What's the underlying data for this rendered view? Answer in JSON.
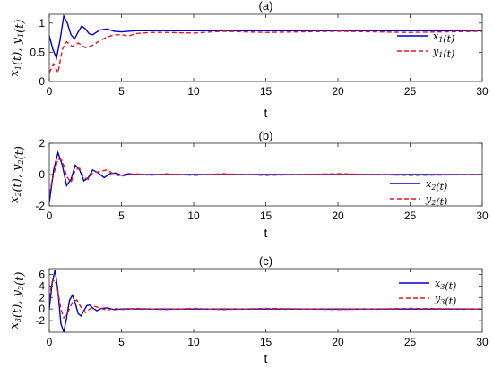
{
  "colors": {
    "x_series": "#0000cc",
    "y_series": "#e8141c",
    "axes": "#262626"
  },
  "chart_data": [
    {
      "type": "line",
      "title": "(a)",
      "xlabel": "t",
      "ylabel": "x1(t), y1(t)",
      "xlim": [
        0,
        30
      ],
      "ylim": [
        0,
        1.15
      ],
      "xticks": [
        0,
        5,
        10,
        15,
        20,
        25,
        30
      ],
      "yticks": [
        0,
        0.5,
        1
      ],
      "ytick_labels": [
        "0",
        "0.5",
        "1"
      ],
      "legend": "right",
      "series": [
        {
          "name": "x1(t)",
          "style": "solid",
          "color": "#0000cc",
          "x": [
            0,
            0.25,
            0.5,
            0.75,
            1.0,
            1.25,
            1.5,
            1.75,
            2.0,
            2.25,
            2.5,
            2.75,
            3.0,
            3.5,
            4.0,
            4.5,
            5.0,
            6.0,
            8.0,
            10,
            15,
            20,
            25,
            30
          ],
          "y": [
            0.78,
            0.55,
            0.4,
            0.72,
            1.12,
            1.0,
            0.8,
            0.73,
            0.85,
            0.95,
            0.9,
            0.82,
            0.8,
            0.88,
            0.9,
            0.86,
            0.85,
            0.87,
            0.87,
            0.87,
            0.87,
            0.87,
            0.87,
            0.87
          ]
        },
        {
          "name": "y1(t)",
          "style": "dashed",
          "color": "#e8141c",
          "x": [
            0,
            0.3,
            0.6,
            0.9,
            1.2,
            1.6,
            2.0,
            2.5,
            3.0,
            3.5,
            4.0,
            4.5,
            5.0,
            5.5,
            6.0,
            7.0,
            8.0,
            10,
            12,
            15,
            20,
            25,
            30
          ],
          "y": [
            0.15,
            0.3,
            0.15,
            0.55,
            0.68,
            0.6,
            0.66,
            0.58,
            0.62,
            0.7,
            0.76,
            0.8,
            0.8,
            0.78,
            0.82,
            0.84,
            0.84,
            0.83,
            0.86,
            0.84,
            0.86,
            0.84,
            0.86
          ]
        }
      ]
    },
    {
      "type": "line",
      "title": "(b)",
      "xlabel": "t",
      "ylabel": "x2(t), y2(t)",
      "xlim": [
        0,
        30
      ],
      "ylim": [
        -2,
        2
      ],
      "xticks": [
        0,
        5,
        10,
        15,
        20,
        25,
        30
      ],
      "yticks": [
        -2,
        0,
        2
      ],
      "ytick_labels": [
        "-2",
        "0",
        "2"
      ],
      "legend": "right",
      "series": [
        {
          "name": "x2(t)",
          "style": "solid",
          "color": "#0000cc",
          "x": [
            0,
            0.3,
            0.6,
            0.9,
            1.2,
            1.5,
            1.8,
            2.1,
            2.4,
            2.7,
            3.0,
            3.4,
            3.8,
            4.2,
            4.6,
            5.0,
            5.5,
            6.0,
            7.0,
            10,
            15,
            20,
            25,
            30
          ],
          "y": [
            -1.8,
            0.3,
            1.4,
            0.6,
            -0.7,
            -0.3,
            0.6,
            0.3,
            -0.4,
            -0.2,
            0.3,
            0.1,
            -0.2,
            0.05,
            0.1,
            -0.05,
            0.05,
            0.0,
            0.0,
            0.0,
            0.0,
            0.0,
            0.0,
            0.0
          ]
        },
        {
          "name": "y2(t)",
          "style": "dashed",
          "color": "#e8141c",
          "x": [
            0,
            0.3,
            0.6,
            0.9,
            1.2,
            1.5,
            1.8,
            2.1,
            2.4,
            2.7,
            3.0,
            3.5,
            4.0,
            4.5,
            5.0,
            6.0,
            7.0,
            8.0,
            10,
            12,
            15,
            20,
            25,
            30
          ],
          "y": [
            -1.2,
            0.0,
            1.0,
            0.9,
            -0.1,
            -0.5,
            0.3,
            0.4,
            -0.2,
            -0.3,
            0.1,
            0.2,
            0.3,
            0.0,
            -0.1,
            0.05,
            -0.05,
            0.05,
            -0.05,
            0.05,
            -0.05,
            0.05,
            -0.05,
            0.0
          ]
        }
      ]
    },
    {
      "type": "line",
      "title": "(c)",
      "xlabel": "t",
      "ylabel": "x3(t), y3(t)",
      "xlim": [
        0,
        30
      ],
      "ylim": [
        -4,
        7
      ],
      "xticks": [
        0,
        5,
        10,
        15,
        20,
        25,
        30
      ],
      "yticks": [
        -2,
        0,
        2,
        4,
        6
      ],
      "ytick_labels": [
        "-2",
        "0",
        "2",
        "4",
        "6"
      ],
      "legend": "top-right",
      "series": [
        {
          "name": "x3(t)",
          "style": "solid",
          "color": "#0000cc",
          "x": [
            0,
            0.2,
            0.4,
            0.6,
            0.8,
            1.0,
            1.2,
            1.4,
            1.6,
            1.8,
            2.0,
            2.2,
            2.4,
            2.6,
            2.8,
            3.0,
            3.3,
            3.6,
            4.0,
            4.5,
            5.0,
            5.5,
            6.0,
            7.0,
            10,
            15,
            20,
            25,
            30
          ],
          "y": [
            0,
            4.5,
            6.8,
            3.0,
            -2.5,
            -4.0,
            -1.5,
            1.5,
            2.4,
            1.0,
            -0.8,
            -1.2,
            -0.3,
            0.6,
            0.7,
            0.2,
            -0.3,
            0.1,
            0.2,
            -0.1,
            0.0,
            0.05,
            0.0,
            0.0,
            0.0,
            0.0,
            0.0,
            0.0,
            0.0
          ]
        },
        {
          "name": "y3(t)",
          "style": "dashed",
          "color": "#e8141c",
          "x": [
            0,
            0.2,
            0.4,
            0.6,
            0.8,
            1.0,
            1.3,
            1.6,
            1.9,
            2.2,
            2.5,
            2.8,
            3.1,
            3.5,
            4.0,
            4.5,
            5.0,
            6.0,
            8.0,
            10,
            12,
            15,
            20,
            25,
            30
          ],
          "y": [
            2.0,
            4.8,
            5.0,
            3.0,
            0.0,
            -1.5,
            -0.5,
            1.2,
            1.6,
            0.3,
            -0.6,
            0.0,
            0.5,
            0.2,
            -0.2,
            0.1,
            -0.1,
            0.1,
            -0.1,
            0.1,
            -0.1,
            0.1,
            -0.1,
            0.1,
            0.0
          ]
        }
      ]
    }
  ]
}
